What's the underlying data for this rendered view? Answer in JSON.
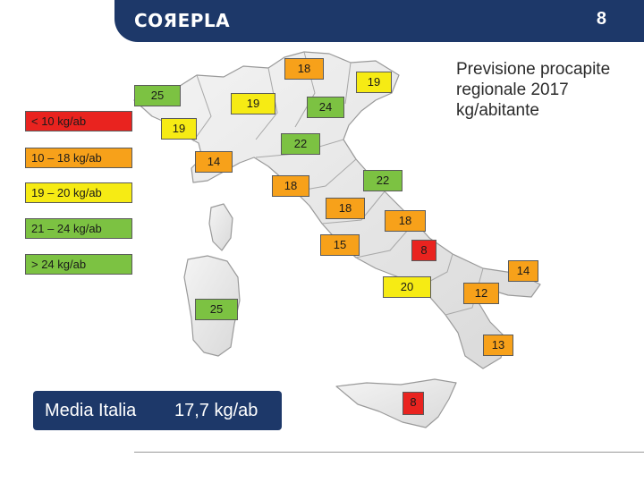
{
  "header": {
    "logo_text": "COЯEPLA",
    "page_number": "8"
  },
  "legend": [
    {
      "label": "< 10 kg/ab",
      "color": "#e9231f"
    },
    {
      "label": "10 – 18 kg/ab",
      "color": "#f7a11a"
    },
    {
      "label": "19 – 20 kg/ab",
      "color": "#f6eb14"
    },
    {
      "label": "21 – 24 kg/ab",
      "color": "#7cc242"
    },
    {
      "label": "> 24 kg/ab",
      "color": "#7cc242"
    }
  ],
  "forecast_title": "Previsione procapite regionale 2017 kg/abitante",
  "regions": [
    {
      "name": "valle-daosta",
      "value": "25"
    },
    {
      "name": "trentino-alto-adige",
      "value": "18"
    },
    {
      "name": "friuli-venezia-giulia",
      "value": "19"
    },
    {
      "name": "lombardia",
      "value": "19"
    },
    {
      "name": "veneto",
      "value": "24"
    },
    {
      "name": "piemonte",
      "value": "19"
    },
    {
      "name": "emilia-romagna",
      "value": "22"
    },
    {
      "name": "liguria",
      "value": "14"
    },
    {
      "name": "toscana",
      "value": "18"
    },
    {
      "name": "marche",
      "value": "22"
    },
    {
      "name": "umbria",
      "value": "18"
    },
    {
      "name": "abruzzo",
      "value": "18"
    },
    {
      "name": "lazio",
      "value": "15"
    },
    {
      "name": "molise",
      "value": "8"
    },
    {
      "name": "puglia",
      "value": "14"
    },
    {
      "name": "campania",
      "value": "20"
    },
    {
      "name": "basilicata",
      "value": "12"
    },
    {
      "name": "sardegna",
      "value": "25"
    },
    {
      "name": "calabria",
      "value": "13"
    },
    {
      "name": "sicilia",
      "value": "8"
    }
  ],
  "average": {
    "label": "Media Italia",
    "value": "17,7 kg/ab"
  }
}
